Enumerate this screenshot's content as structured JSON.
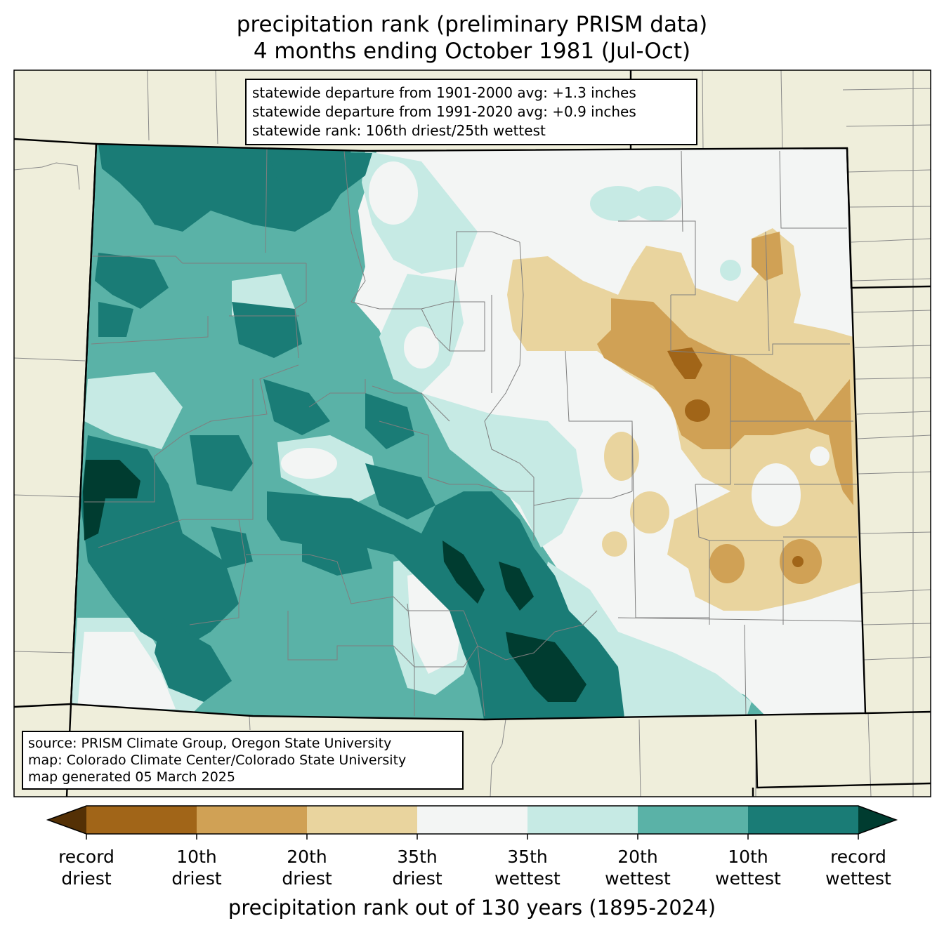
{
  "title_line1": "precipitation rank (preliminary PRISM data)",
  "title_line2": "4 months ending October 1981 (Jul-Oct)",
  "stats": {
    "line1": "statewide departure from 1901-2000 avg: +1.3 inches",
    "line2": "statewide departure from 1991-2020 avg: +0.9 inches",
    "line3": "statewide rank: 106th driest/25th wettest"
  },
  "source": {
    "line1": "source: PRISM Climate Group, Oregon State University",
    "line2": "map: Colorado Climate Center/Colorado State University",
    "line3": "map generated 05 March 2025"
  },
  "colorbar": {
    "title": "precipitation rank out of 130 years (1895-2024)",
    "bins": [
      {
        "label": "record driest",
        "color": "#543005"
      },
      {
        "label": "10th driest",
        "color": "#a16518"
      },
      {
        "label": "20th driest",
        "color": "#d0a155"
      },
      {
        "label": "35th driest",
        "color": "#e9d49e"
      },
      {
        "label": "35th wettest",
        "color": "#f3f5f4"
      },
      {
        "label": "20th wettest",
        "color": "#c6eae4"
      },
      {
        "label": "10th wettest",
        "color": "#5ab2a7"
      },
      {
        "label": "record wettest",
        "color": "#1a7c76"
      },
      {
        "label": "",
        "color": "#003c30"
      }
    ],
    "ticks": [
      {
        "line1": "record",
        "line2": "driest"
      },
      {
        "line1": "10th",
        "line2": "driest"
      },
      {
        "line1": "20th",
        "line2": "driest"
      },
      {
        "line1": "35th",
        "line2": "driest"
      },
      {
        "line1": "35th",
        "line2": "wettest"
      },
      {
        "line1": "20th",
        "line2": "wettest"
      },
      {
        "line1": "10th",
        "line2": "wettest"
      },
      {
        "line1": "record",
        "line2": "wettest"
      }
    ]
  },
  "colors": {
    "land": "#efeedb",
    "record_driest": "#543005",
    "driest10": "#a16518",
    "driest20": "#d0a155",
    "driest35": "#e9d49e",
    "near_normal": "#f3f5f4",
    "wettest35": "#c6eae4",
    "wettest20": "#5ab2a7",
    "wettest10": "#1a7c76",
    "record_wettest": "#003c30"
  }
}
